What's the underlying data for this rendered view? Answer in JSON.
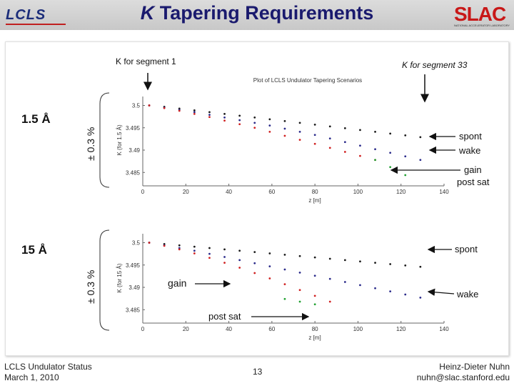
{
  "slide": {
    "title_k": "K",
    "title_rest": " Tapering Requirements",
    "logo_left": "LCLS",
    "logo_right": "SLAC",
    "logo_right_sub": "NATIONAL ACCELERATOR LABORATORY",
    "footer_left_1": "LCLS Undulator Status",
    "footer_left_2": "March 1, 2010",
    "page_number": "13",
    "footer_right_1": "Heinz-Dieter Nuhn",
    "footer_right_2": "nuhn@slac.stanford.edu"
  },
  "annotations": {
    "k_seg1": "K for segment 1",
    "k_seg33": "K for segment 33",
    "top_wavelength": "1.5 Å",
    "bottom_wavelength": "15 Å",
    "tolerance": "± 0.3 %",
    "top_spont": "spont",
    "top_wake": "wake",
    "top_gain": "gain",
    "top_post_sat": "post sat",
    "bottom_spont": "spont",
    "bottom_gain": "gain",
    "bottom_wake": "wake",
    "bottom_post_sat": "post sat"
  },
  "chart_data": [
    {
      "type": "scatter",
      "title": "Plot of LCLS Undulator Tapering Scenarios",
      "xlabel": "z [m]",
      "ylabel": "K (for 1.5 Å)",
      "xlim": [
        0,
        140
      ],
      "ylim": [
        3.482,
        3.502
      ],
      "xticks": [
        0,
        20,
        40,
        60,
        80,
        100,
        120,
        140
      ],
      "yticks": [
        3.485,
        3.49,
        3.495,
        3.5
      ],
      "series": [
        {
          "color": "#1a1a1a",
          "x": [
            3,
            10,
            17,
            24,
            31,
            38,
            45,
            52,
            59,
            66,
            73,
            80,
            87,
            94,
            101,
            108,
            115,
            122,
            129
          ],
          "y": [
            3.5,
            3.4997,
            3.4993,
            3.4989,
            3.4985,
            3.4981,
            3.4977,
            3.4973,
            3.4969,
            3.4965,
            3.4961,
            3.4957,
            3.4953,
            3.4949,
            3.4945,
            3.4941,
            3.4937,
            3.4933,
            3.4929
          ]
        },
        {
          "color": "#2a2a8a",
          "x": [
            3,
            10,
            17,
            24,
            31,
            38,
            45,
            52,
            59,
            66,
            73,
            80,
            87,
            94,
            101,
            108,
            115,
            122,
            129
          ],
          "y": [
            3.5,
            3.4995,
            3.499,
            3.4985,
            3.4979,
            3.4973,
            3.4967,
            3.4961,
            3.4955,
            3.4948,
            3.4941,
            3.4934,
            3.4926,
            3.4918,
            3.491,
            3.4902,
            3.4894,
            3.4886,
            3.4878
          ]
        },
        {
          "color": "#d02020",
          "x": [
            3,
            10,
            17,
            24,
            31,
            38,
            45,
            52,
            59,
            66,
            73,
            80,
            87,
            94,
            101,
            108
          ],
          "y": [
            3.5,
            3.4994,
            3.4988,
            3.4981,
            3.4974,
            3.4966,
            3.4958,
            3.495,
            3.4941,
            3.4932,
            3.4923,
            3.4914,
            3.4905,
            3.4896,
            3.4887,
            3.4878
          ]
        },
        {
          "color": "#20a030",
          "x": [
            108,
            115,
            122
          ],
          "y": [
            3.4878,
            3.4862,
            3.4844
          ]
        }
      ]
    },
    {
      "type": "scatter",
      "xlabel": "z [m]",
      "ylabel": "K (for 15 Å)",
      "xlim": [
        0,
        140
      ],
      "ylim": [
        3.482,
        3.502
      ],
      "xticks": [
        0,
        20,
        40,
        60,
        80,
        100,
        120,
        140
      ],
      "yticks": [
        3.485,
        3.49,
        3.495,
        3.5
      ],
      "series": [
        {
          "color": "#1a1a1a",
          "x": [
            3,
            10,
            17,
            24,
            31,
            38,
            45,
            52,
            59,
            66,
            73,
            80,
            87,
            94,
            101,
            108,
            115,
            122,
            129
          ],
          "y": [
            3.5,
            3.4997,
            3.4994,
            3.4991,
            3.4988,
            3.4985,
            3.4982,
            3.4979,
            3.4976,
            3.4973,
            3.497,
            3.4967,
            3.4964,
            3.4961,
            3.4958,
            3.4955,
            3.4952,
            3.4949,
            3.4946
          ]
        },
        {
          "color": "#2a2a8a",
          "x": [
            3,
            10,
            17,
            24,
            31,
            38,
            45,
            52,
            59,
            66,
            73,
            80,
            87,
            94,
            101,
            108,
            115,
            122,
            129
          ],
          "y": [
            3.5,
            3.4994,
            3.4988,
            3.4982,
            3.4975,
            3.4968,
            3.4961,
            3.4954,
            3.4947,
            3.494,
            3.4933,
            3.4926,
            3.4919,
            3.4912,
            3.4905,
            3.4898,
            3.4891,
            3.4884,
            3.4877
          ]
        },
        {
          "color": "#d02020",
          "x": [
            3,
            10,
            17,
            24,
            31,
            38,
            45,
            52,
            59,
            66,
            73,
            80,
            87
          ],
          "y": [
            3.5,
            3.4993,
            3.4985,
            3.4976,
            3.4966,
            3.4955,
            3.4944,
            3.4932,
            3.492,
            3.4907,
            3.4894,
            3.4881,
            3.4868
          ]
        },
        {
          "color": "#20a030",
          "x": [
            66,
            73,
            80
          ],
          "y": [
            3.4874,
            3.4868,
            3.4862
          ]
        }
      ]
    }
  ]
}
